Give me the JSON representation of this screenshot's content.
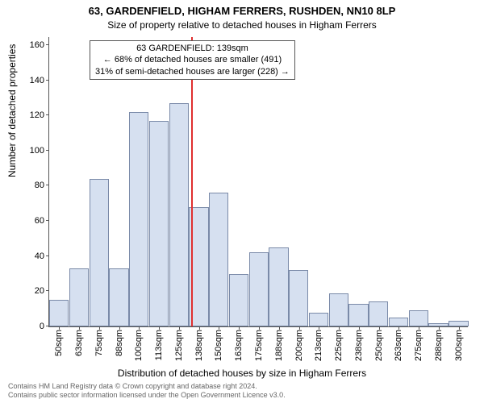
{
  "chart": {
    "type": "histogram",
    "title_main": "63, GARDENFIELD, HIGHAM FERRERS, RUSHDEN, NN10 8LP",
    "title_sub": "Size of property relative to detached houses in Higham Ferrers",
    "ylabel": "Number of detached properties",
    "xlabel": "Distribution of detached houses by size in Higham Ferrers",
    "background_color": "#ffffff",
    "bar_fill": "#d6e0f0",
    "bar_border": "#7a8aa8",
    "axis_color": "#555555",
    "ref_line_color": "#e03030",
    "ylim": [
      0,
      165
    ],
    "yticks": [
      0,
      20,
      40,
      60,
      80,
      100,
      120,
      140,
      160
    ],
    "categories": [
      "50sqm",
      "63sqm",
      "75sqm",
      "88sqm",
      "100sqm",
      "113sqm",
      "125sqm",
      "138sqm",
      "150sqm",
      "163sqm",
      "175sqm",
      "188sqm",
      "200sqm",
      "213sqm",
      "225sqm",
      "238sqm",
      "250sqm",
      "263sqm",
      "275sqm",
      "288sqm",
      "300sqm"
    ],
    "values": [
      15,
      33,
      84,
      33,
      122,
      117,
      127,
      68,
      76,
      30,
      42,
      45,
      32,
      8,
      19,
      13,
      14,
      5,
      9,
      2,
      3
    ],
    "ref_line_category_index": 7,
    "ref_line_label": "139sqm",
    "annotation": {
      "line1": "63 GARDENFIELD: 139sqm",
      "line2": "← 68% of detached houses are smaller (491)",
      "line3": "31% of semi-detached houses are larger (228) →"
    },
    "title_fontsize": 13,
    "subtitle_fontsize": 12,
    "label_fontsize": 12,
    "tick_fontsize": 11,
    "annot_fontsize": 11
  },
  "copyright": {
    "line1": "Contains HM Land Registry data © Crown copyright and database right 2024.",
    "line2": "Contains public sector information licensed under the Open Government Licence v3.0."
  }
}
